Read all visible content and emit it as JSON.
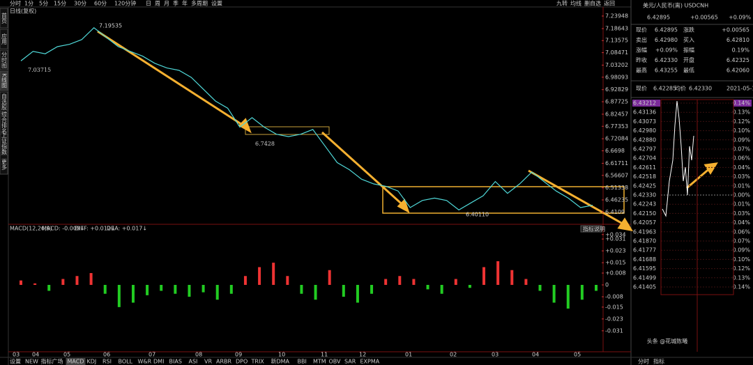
{
  "toolbar": {
    "periods": [
      "分时",
      "1分",
      "5分",
      "15分",
      "30分",
      "60分",
      "120分钟",
      "日",
      "周",
      "月",
      "季",
      "年",
      "多周期",
      "设置"
    ],
    "right": [
      "九转",
      "均线",
      "删自选",
      "返回"
    ]
  },
  "side_tabs": [
    "首页",
    "应用",
    "分时图",
    "K线图",
    "自选股",
    "综合排名",
    "上证指数",
    "更多"
  ],
  "kline": {
    "subtitle": "日线(复权)",
    "high_label": "7.19535",
    "low_label": "6.40110",
    "annotations": [
      "7.03715",
      "6.7428"
    ],
    "yticks": [
      7.23948,
      7.18643,
      7.13575,
      7.08471,
      7.03202,
      6.98093,
      6.92829,
      6.87725,
      6.82457,
      6.77353,
      6.72084,
      6.6698,
      6.61711,
      6.56607,
      6.51338,
      6.46235,
      6.4109
    ],
    "price_estimate": [
      7.05,
      7.09,
      7.08,
      7.11,
      7.12,
      7.14,
      7.19,
      7.15,
      7.11,
      7.09,
      7.07,
      7.04,
      7.02,
      7.01,
      6.98,
      6.93,
      6.88,
      6.85,
      6.77,
      6.81,
      6.77,
      6.74,
      6.73,
      6.74,
      6.76,
      6.69,
      6.62,
      6.59,
      6.55,
      6.53,
      6.52,
      6.5,
      6.43,
      6.46,
      6.47,
      6.46,
      6.42,
      6.45,
      6.48,
      6.54,
      6.49,
      6.53,
      6.58,
      6.54,
      6.5,
      6.47,
      6.43,
      6.44
    ],
    "xlabels": [
      "03",
      "04",
      "05",
      "06",
      "07",
      "08",
      "09",
      "10",
      "11",
      "12",
      "01",
      "02",
      "03",
      "04",
      "05"
    ]
  },
  "macd": {
    "header": "MACD(12,26,9)",
    "macd": "MACD: -0.009↓",
    "diff": "DIFF: +0.012↓",
    "dea": "DEA: +0.017↓",
    "button": "指标说明",
    "yticks": [
      {
        "value": 0.034,
        "label": "+0.034"
      },
      {
        "value": 0.031,
        "label": "+0.031"
      },
      {
        "value": 0.023,
        "label": "+0.023"
      },
      {
        "value": 0.015,
        "label": "+0.015"
      },
      {
        "value": 0.008,
        "label": "+0.008"
      },
      0,
      -0.008,
      -0.015,
      -0.023,
      -0.031
    ],
    "hist_estimate": [
      0.003,
      0.001,
      -0.004,
      0.004,
      0.006,
      0.008,
      -0.006,
      -0.015,
      -0.012,
      -0.007,
      -0.004,
      -0.006,
      -0.008,
      -0.005,
      -0.01,
      -0.006,
      0.006,
      0.012,
      0.015,
      0.006,
      -0.006,
      -0.01,
      0.01,
      -0.008,
      -0.012,
      -0.006,
      0.004,
      0.006,
      0.004,
      -0.003,
      -0.006,
      0.004,
      -0.002,
      0.012,
      0.016,
      0.01,
      0.004,
      -0.004,
      -0.012,
      -0.016,
      -0.01,
      -0.004
    ]
  },
  "bottom_tabs": [
    "设置",
    "NEW",
    "指标广场",
    "MACD",
    "KDJ",
    "RSI",
    "BOLL",
    "W&R",
    "DMI",
    "BIAS",
    "ASI",
    "VR",
    "ARBR",
    "DPO",
    "TRIX",
    "新DMA",
    "BBI",
    "MTM",
    "OBV",
    "SAR",
    "EXPMA"
  ],
  "quote": {
    "title": "美元/人民币(离) USDCNH",
    "price": "6.42895",
    "change": "+0.00565",
    "pct": "+0.09%",
    "rows": [
      [
        "现价",
        "6.42895",
        "涨跌",
        "+0.00565"
      ],
      [
        "卖出",
        "6.42980",
        "买入",
        "6.42810"
      ],
      [
        "涨幅",
        "+0.09%",
        "振幅",
        "0.19%"
      ],
      [
        "昨收",
        "6.42330",
        "开盘",
        "6.42325"
      ],
      [
        "最高",
        "6.43255",
        "最低",
        "6.42060"
      ]
    ],
    "intraday_header": [
      "现价",
      "6.42285",
      "均价",
      "6.42330",
      "2021-05-19"
    ],
    "intraday_ticks": [
      "6.43212",
      "6.43136",
      "6.43073",
      "6.42980",
      "6.42880",
      "6.42797",
      "6.42704",
      "6.42611",
      "6.42518",
      "6.42425",
      "6.42330",
      "6.42243",
      "6.42150",
      "6.42057",
      "6.41963",
      "6.41870",
      "6.41777",
      "6.41688",
      "6.41595",
      "6.41499",
      "6.41405"
    ],
    "intraday_pcts": [
      "0.14%",
      "0.13%",
      "0.12%",
      "0.10%",
      "0.09%",
      "0.07%",
      "0.06%",
      "0.04%",
      "0.03%",
      "0.01%",
      "0.00%",
      "0.01%",
      "0.03%",
      "0.04%",
      "0.06%",
      "0.07%",
      "0.09%",
      "0.10%",
      "0.12%",
      "0.13%",
      "0.14%"
    ],
    "tabs": [
      "分时",
      "指标"
    ]
  },
  "watermark": "头条 @花城陈曦"
}
